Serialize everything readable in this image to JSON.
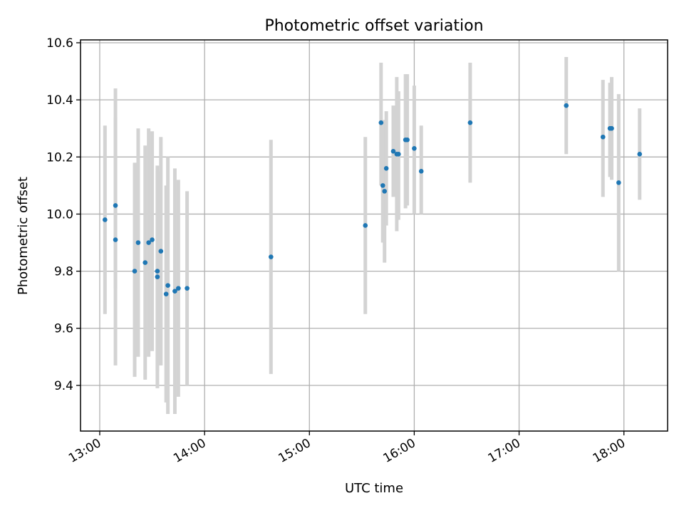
{
  "chart_data": {
    "type": "scatter",
    "title": "Photometric offset variation",
    "xlabel": "UTC time",
    "ylabel": "Photometric offset",
    "x_is_time": true,
    "xlim": [
      "12:49",
      "18:25"
    ],
    "ylim": [
      9.24,
      10.61
    ],
    "xticks": [
      "13:00",
      "14:00",
      "15:00",
      "16:00",
      "17:00",
      "18:00"
    ],
    "yticks": [
      "9.4",
      "9.6",
      "9.8",
      "10.0",
      "10.2",
      "10.4",
      "10.6"
    ],
    "grid": true,
    "legend": "none",
    "colors": {
      "point": "#1f77b4",
      "errorbar": "#d3d3d3",
      "grid": "#b0b0b0"
    },
    "series": [
      {
        "points": [
          {
            "t": "13:03",
            "y": 9.98,
            "lo": 9.65,
            "hi": 10.31
          },
          {
            "t": "13:09",
            "y": 10.03,
            "lo": 9.74,
            "hi": 10.34
          },
          {
            "t": "13:09",
            "y": 9.91,
            "lo": 9.47,
            "hi": 10.44
          },
          {
            "t": "13:20",
            "y": 9.8,
            "lo": 9.43,
            "hi": 10.18
          },
          {
            "t": "13:22",
            "y": 9.9,
            "lo": 9.5,
            "hi": 10.3
          },
          {
            "t": "13:26",
            "y": 9.83,
            "lo": 9.42,
            "hi": 10.24
          },
          {
            "t": "13:28",
            "y": 9.9,
            "lo": 9.5,
            "hi": 10.3
          },
          {
            "t": "13:30",
            "y": 9.91,
            "lo": 9.52,
            "hi": 10.29
          },
          {
            "t": "13:33",
            "y": 9.78,
            "lo": 9.39,
            "hi": 10.17
          },
          {
            "t": "13:33",
            "y": 9.8,
            "lo": 9.45,
            "hi": 10.15
          },
          {
            "t": "13:35",
            "y": 9.87,
            "lo": 9.47,
            "hi": 10.27
          },
          {
            "t": "13:38",
            "y": 9.72,
            "lo": 9.34,
            "hi": 10.1
          },
          {
            "t": "13:39",
            "y": 9.75,
            "lo": 9.3,
            "hi": 10.2
          },
          {
            "t": "13:43",
            "y": 9.73,
            "lo": 9.3,
            "hi": 10.16
          },
          {
            "t": "13:45",
            "y": 9.74,
            "lo": 9.36,
            "hi": 10.12
          },
          {
            "t": "13:50",
            "y": 9.74,
            "lo": 9.4,
            "hi": 10.08
          },
          {
            "t": "14:38",
            "y": 9.85,
            "lo": 9.44,
            "hi": 10.26
          },
          {
            "t": "15:32",
            "y": 9.96,
            "lo": 9.65,
            "hi": 10.27
          },
          {
            "t": "15:41",
            "y": 10.32,
            "lo": 10.1,
            "hi": 10.53
          },
          {
            "t": "15:42",
            "y": 10.1,
            "lo": 9.9,
            "hi": 10.3
          },
          {
            "t": "15:43",
            "y": 10.08,
            "lo": 9.83,
            "hi": 10.33
          },
          {
            "t": "15:44",
            "y": 10.16,
            "lo": 9.96,
            "hi": 10.36
          },
          {
            "t": "15:48",
            "y": 10.22,
            "lo": 10.06,
            "hi": 10.38
          },
          {
            "t": "15:50",
            "y": 10.21,
            "lo": 9.94,
            "hi": 10.48
          },
          {
            "t": "15:51",
            "y": 10.21,
            "lo": 9.98,
            "hi": 10.43
          },
          {
            "t": "15:55",
            "y": 10.26,
            "lo": 10.02,
            "hi": 10.49
          },
          {
            "t": "15:56",
            "y": 10.26,
            "lo": 10.03,
            "hi": 10.49
          },
          {
            "t": "16:00",
            "y": 10.23,
            "lo": 10.0,
            "hi": 10.45
          },
          {
            "t": "16:04",
            "y": 10.15,
            "lo": 10.0,
            "hi": 10.31
          },
          {
            "t": "16:32",
            "y": 10.32,
            "lo": 10.11,
            "hi": 10.53
          },
          {
            "t": "17:27",
            "y": 10.38,
            "lo": 10.21,
            "hi": 10.55
          },
          {
            "t": "17:48",
            "y": 10.27,
            "lo": 10.06,
            "hi": 10.47
          },
          {
            "t": "17:52",
            "y": 10.3,
            "lo": 10.13,
            "hi": 10.46
          },
          {
            "t": "17:53",
            "y": 10.3,
            "lo": 10.12,
            "hi": 10.48
          },
          {
            "t": "17:57",
            "y": 10.11,
            "lo": 9.8,
            "hi": 10.42
          },
          {
            "t": "18:09",
            "y": 10.21,
            "lo": 10.05,
            "hi": 10.37
          }
        ]
      }
    ]
  }
}
